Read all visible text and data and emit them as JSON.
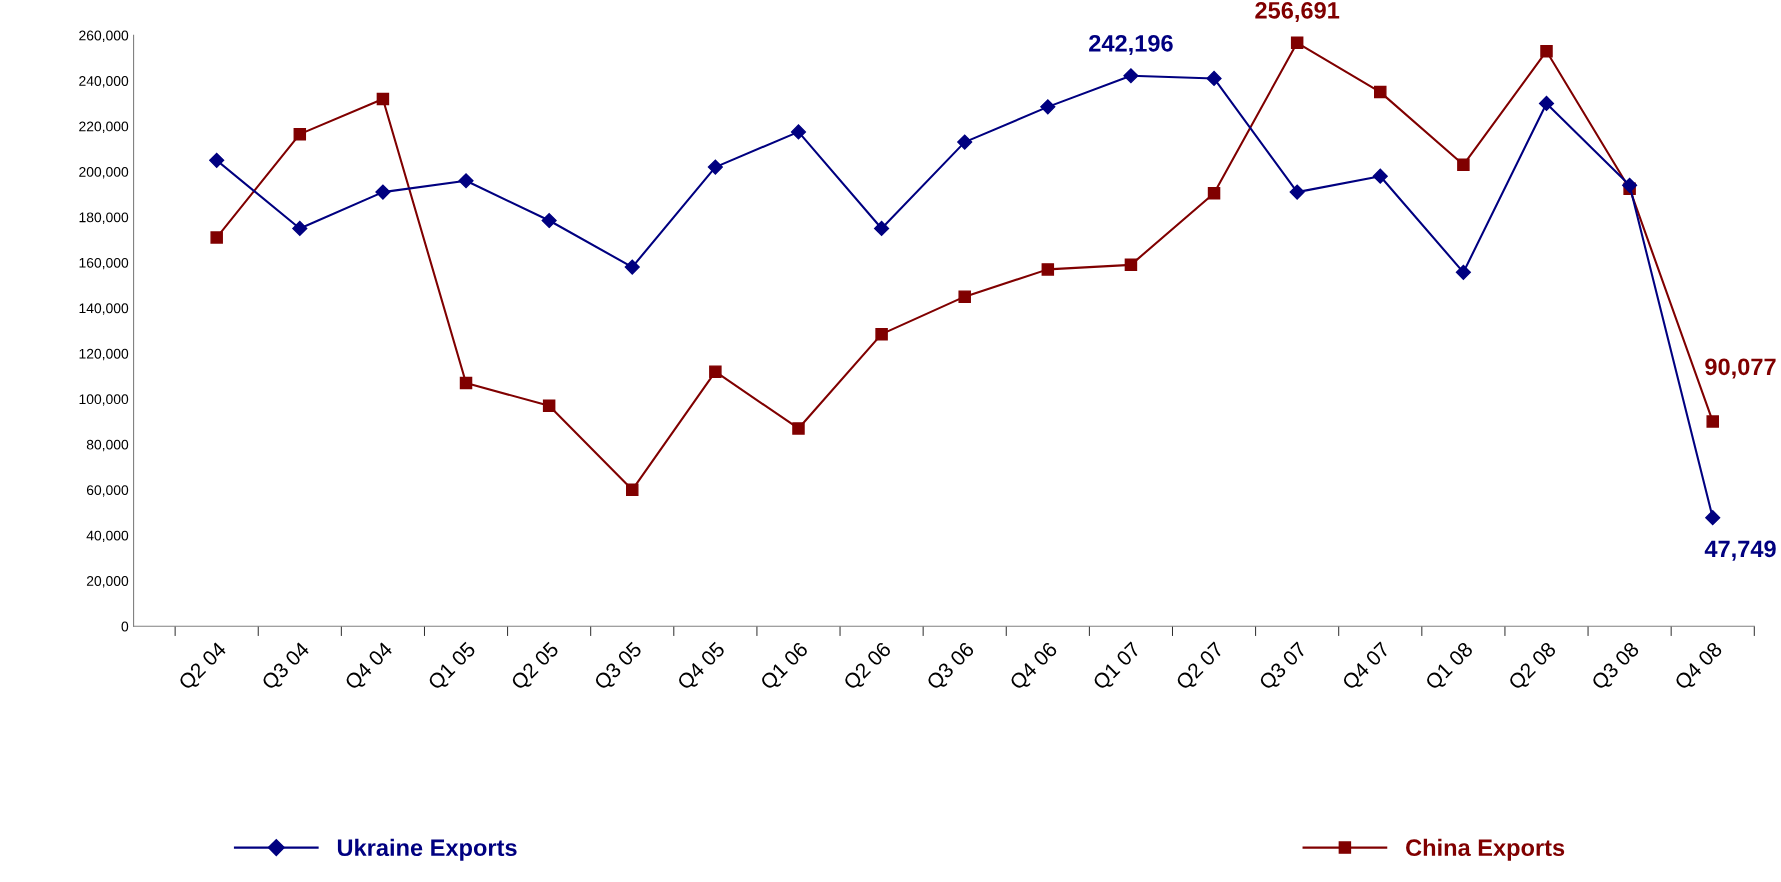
{
  "chart_data": {
    "type": "line",
    "categories": [
      "Q2 04",
      "Q3 04",
      "Q4 04",
      "Q1 05",
      "Q2 05",
      "Q3 05",
      "Q4 05",
      "Q1 06",
      "Q2 06",
      "Q3 06",
      "Q4 06",
      "Q1 07",
      "Q2 07",
      "Q3 07",
      "Q4 07",
      "Q1 08",
      "Q2 08",
      "Q3 08",
      "Q4 08"
    ],
    "series": [
      {
        "name": "Ukraine Exports",
        "color": "#000080",
        "marker": "diamond",
        "values": [
          205000,
          175000,
          191000,
          196000,
          178500,
          158000,
          202000,
          217500,
          175000,
          213000,
          228500,
          242196,
          241000,
          191000,
          198000,
          155700,
          230000,
          194000,
          47749
        ],
        "value_labels": [
          null,
          null,
          null,
          null,
          null,
          null,
          null,
          null,
          null,
          null,
          null,
          "242,196",
          null,
          null,
          null,
          null,
          null,
          null,
          "47,749"
        ]
      },
      {
        "name": "China Exports",
        "color": "#800000",
        "marker": "square",
        "values": [
          171000,
          216500,
          232000,
          107000,
          97000,
          60000,
          112000,
          87000,
          128500,
          145000,
          157000,
          159000,
          190500,
          256691,
          235000,
          203000,
          253000,
          192500,
          90077
        ],
        "value_labels": [
          null,
          null,
          null,
          null,
          null,
          null,
          null,
          null,
          null,
          null,
          null,
          null,
          null,
          "256,691",
          null,
          null,
          null,
          null,
          "90,077"
        ]
      }
    ],
    "ylim": [
      0,
      260000
    ],
    "yticks": [
      {
        "value": 0,
        "label": "0"
      },
      {
        "value": 20000,
        "label": "20,000"
      },
      {
        "value": 40000,
        "label": "40,000"
      },
      {
        "value": 60000,
        "label": "60,000"
      },
      {
        "value": 80000,
        "label": "80,000"
      },
      {
        "value": 100000,
        "label": "100,000"
      },
      {
        "value": 120000,
        "label": "120,000"
      },
      {
        "value": 140000,
        "label": "140,000"
      },
      {
        "value": 160000,
        "label": "160,000"
      },
      {
        "value": 180000,
        "label": "180,000"
      },
      {
        "value": 200000,
        "label": "200,000"
      },
      {
        "value": 220000,
        "label": "220,000"
      },
      {
        "value": 240000,
        "label": "240,000"
      },
      {
        "value": 260000,
        "label": "260,000"
      }
    ],
    "grid": false,
    "legend": "bottom",
    "line_style": "solid"
  }
}
